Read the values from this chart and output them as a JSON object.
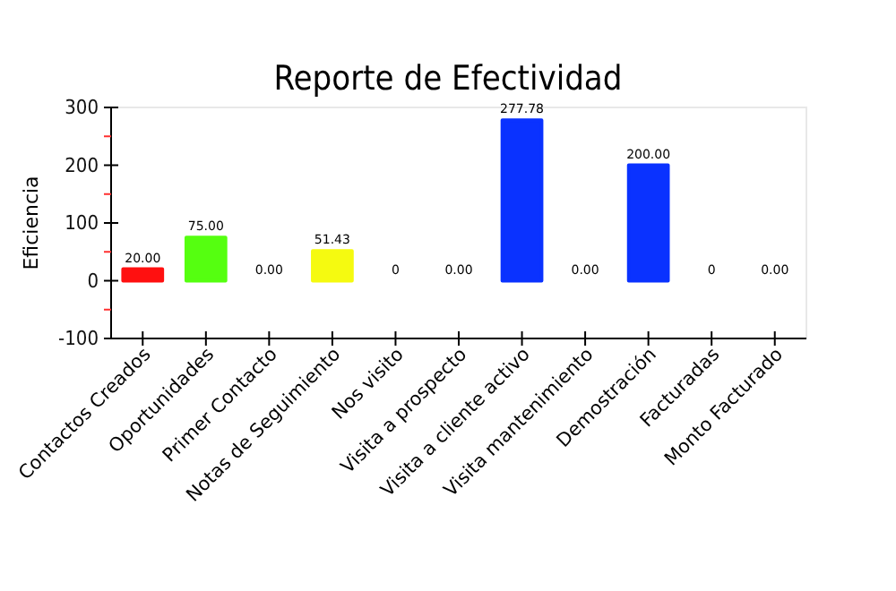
{
  "chart_data": {
    "type": "bar",
    "title": "Reporte de Efectividad",
    "ylabel": "Eficiencia",
    "categories": [
      "Contactos Creados",
      "Oportunidades",
      "Primer Contacto",
      "Notas de Seguimiento",
      "Nos visito",
      "Visita a prospecto",
      "Visita a cliente activo",
      "Visita mantenimiento",
      "Demostración",
      "Facturadas",
      "Monto Facturado"
    ],
    "values": [
      20,
      75,
      0,
      51.43,
      0,
      0,
      277.78,
      0,
      200,
      0,
      0
    ],
    "value_labels": [
      "20.00",
      "75.00",
      "0.00",
      "51.43",
      "0",
      "0.00",
      "277.78",
      "0.00",
      "200.00",
      "0",
      "0.00"
    ],
    "colors": [
      "#ff1010",
      "#55ff10",
      "#f08080",
      "#f5fa10",
      "#f08080",
      "#f08080",
      "#0a32ff",
      "#f08080",
      "#0a32ff",
      "#f08080",
      "#f08080"
    ],
    "ylim": [
      -100,
      300
    ],
    "yticks": [
      -100,
      {
        "value": -50,
        "label": null
      },
      0,
      {
        "value": 50,
        "label": null
      },
      100,
      {
        "value": 150,
        "label": null
      },
      200,
      {
        "value": 250,
        "label": null
      },
      300
    ],
    "grid": false
  }
}
